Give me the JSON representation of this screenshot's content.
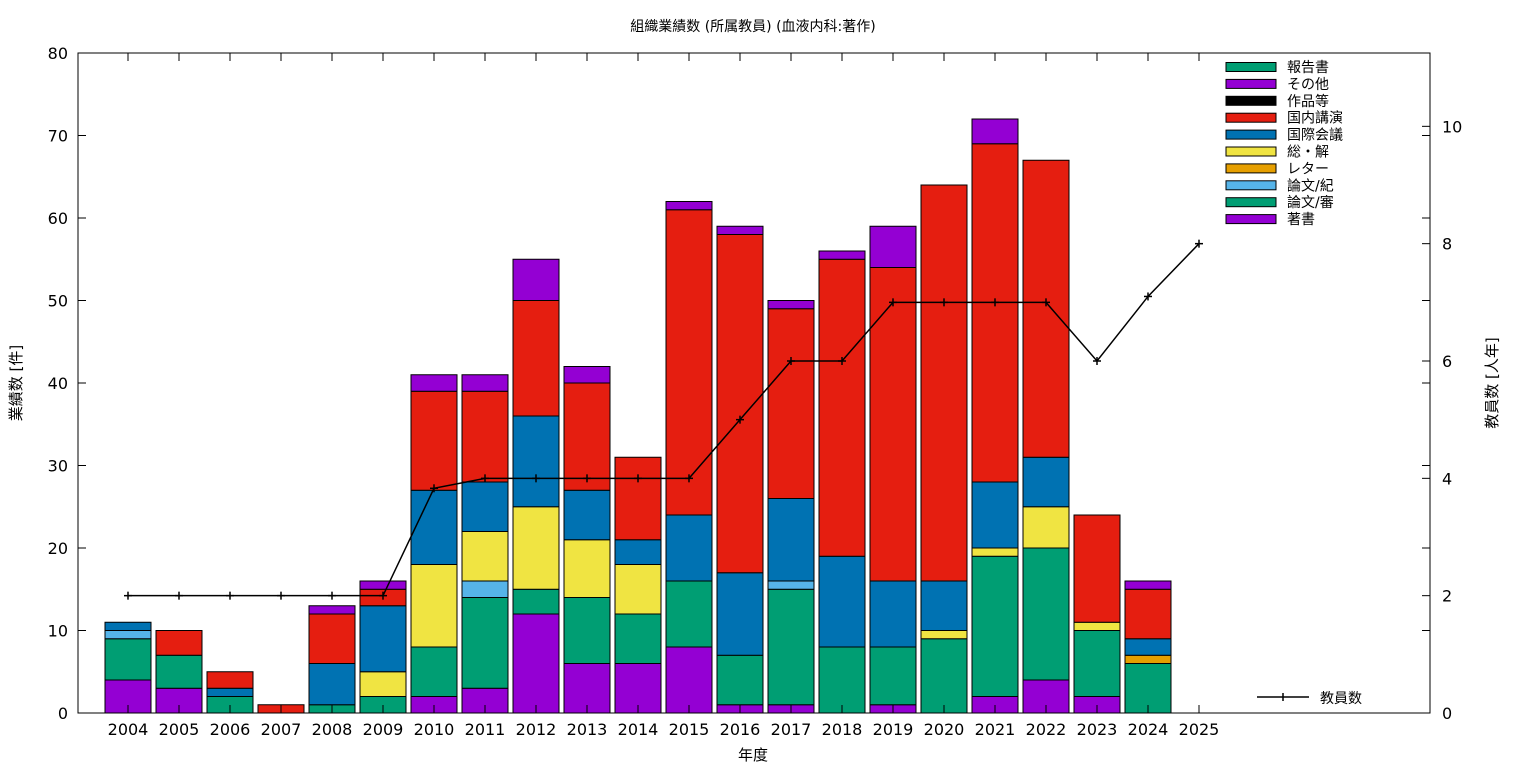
{
  "chart_data": {
    "type": "bar",
    "title": "組織業績数 (所属教員) (血液内科:著作)",
    "xlabel": "年度",
    "ylabel": "業績数 [件]",
    "y2label": "教員数 [人年]",
    "ylim": [
      0,
      80
    ],
    "y2lim": [
      0,
      11.25
    ],
    "yticks": [
      "0",
      "10",
      "20",
      "30",
      "40",
      "50",
      "60",
      "70",
      "80"
    ],
    "y2ticks": [
      "0",
      "2",
      "4",
      "6",
      "8",
      "10"
    ],
    "grid": false,
    "legend_position": "top-right",
    "categories": [
      "2004",
      "2005",
      "2006",
      "2007",
      "2008",
      "2009",
      "2010",
      "2011",
      "2012",
      "2013",
      "2014",
      "2015",
      "2016",
      "2017",
      "2018",
      "2019",
      "2020",
      "2021",
      "2022",
      "2023",
      "2024",
      "2025"
    ],
    "series": [
      {
        "name": "著書",
        "color": "#9400d3",
        "values": [
          4,
          3,
          0,
          0,
          0,
          0,
          2,
          3,
          12,
          6,
          6,
          8,
          1,
          1,
          0,
          1,
          0,
          2,
          4,
          2,
          0,
          0
        ]
      },
      {
        "name": "論文/審",
        "color": "#009e73",
        "values": [
          5,
          4,
          2,
          0,
          1,
          2,
          6,
          11,
          3,
          8,
          6,
          8,
          6,
          14,
          8,
          7,
          9,
          17,
          16,
          8,
          6,
          0
        ]
      },
      {
        "name": "論文/紀",
        "color": "#56b4e9",
        "values": [
          1,
          0,
          0,
          0,
          0,
          0,
          0,
          2,
          0,
          0,
          0,
          0,
          0,
          1,
          0,
          0,
          0,
          0,
          0,
          0,
          0,
          0
        ]
      },
      {
        "name": "レター",
        "color": "#e69f00",
        "values": [
          0,
          0,
          0,
          0,
          0,
          0,
          0,
          0,
          0,
          0,
          0,
          0,
          0,
          0,
          0,
          0,
          0,
          0,
          0,
          0,
          1,
          0
        ]
      },
      {
        "name": "総・解",
        "color": "#f0e442",
        "values": [
          0,
          0,
          0,
          0,
          0,
          3,
          10,
          6,
          10,
          7,
          6,
          0,
          0,
          0,
          0,
          0,
          1,
          1,
          5,
          1,
          0,
          0
        ]
      },
      {
        "name": "国際会議",
        "color": "#0072b2",
        "values": [
          1,
          0,
          1,
          0,
          5,
          8,
          9,
          6,
          11,
          6,
          3,
          8,
          10,
          10,
          11,
          8,
          6,
          8,
          6,
          0,
          2,
          0
        ]
      },
      {
        "name": "国内講演",
        "color": "#e51e10",
        "values": [
          0,
          3,
          2,
          1,
          6,
          2,
          12,
          11,
          14,
          13,
          10,
          37,
          41,
          23,
          36,
          38,
          48,
          41,
          36,
          13,
          6,
          0
        ]
      },
      {
        "name": "作品等",
        "color": "#000000",
        "values": [
          0,
          0,
          0,
          0,
          0,
          0,
          0,
          0,
          0,
          0,
          0,
          0,
          0,
          0,
          0,
          0,
          0,
          0,
          0,
          0,
          0,
          0
        ]
      },
      {
        "name": "その他",
        "color": "#9400d3",
        "values": [
          0,
          0,
          0,
          0,
          1,
          1,
          2,
          2,
          5,
          2,
          0,
          1,
          1,
          1,
          1,
          5,
          0,
          3,
          0,
          0,
          1,
          0
        ]
      },
      {
        "name": "報告書",
        "color": "#009e73",
        "values": [
          0,
          0,
          0,
          0,
          0,
          0,
          0,
          0,
          0,
          0,
          0,
          0,
          0,
          0,
          0,
          0,
          0,
          0,
          0,
          0,
          0,
          0
        ]
      }
    ],
    "line": {
      "name": "教員数",
      "axis": "y2",
      "color": "#000000",
      "values": [
        2,
        2,
        2,
        2,
        2,
        2,
        3.83,
        4,
        4,
        4,
        4,
        4,
        5,
        6,
        6,
        7,
        7,
        7,
        7,
        6,
        7.1,
        8
      ]
    }
  }
}
